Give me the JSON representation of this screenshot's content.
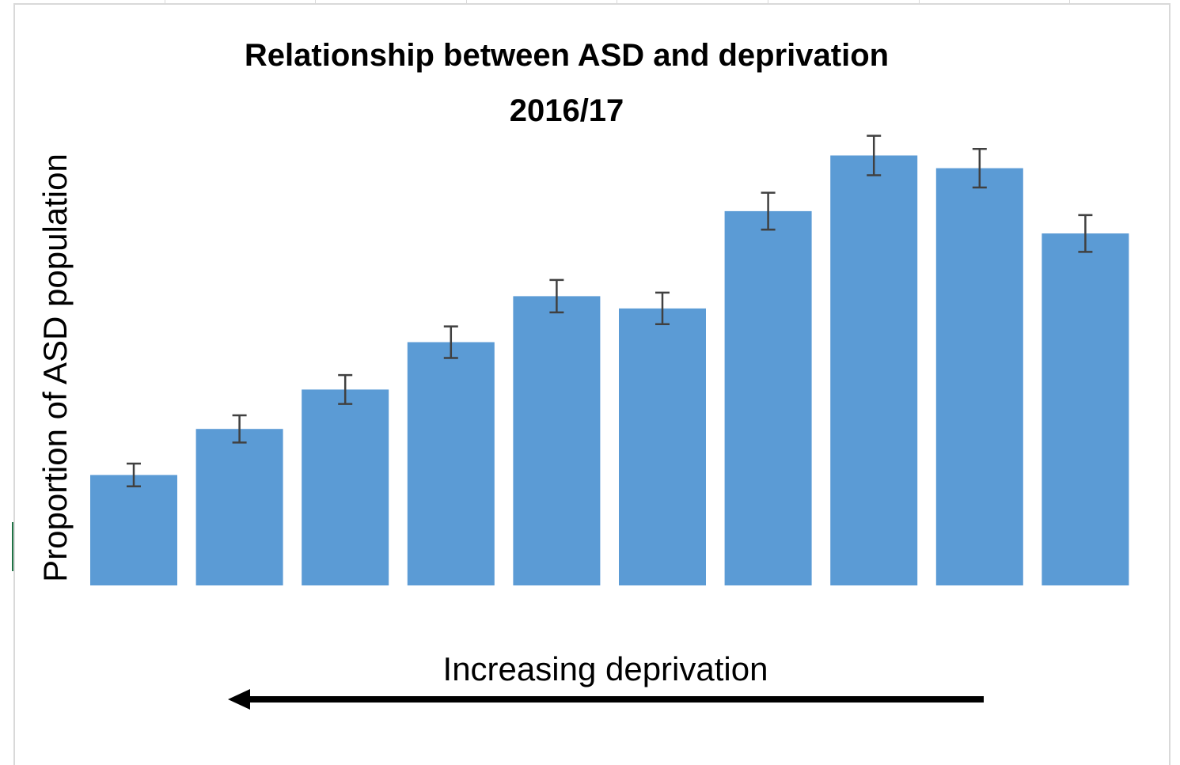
{
  "colors": {
    "bar": "#5B9BD5",
    "error_bar": "#404040",
    "arrow": "#000000",
    "frame": "#d9d9d9"
  },
  "chart_data": {
    "type": "bar",
    "title": [
      "Relationship between ASD and deprivation",
      "2016/17"
    ],
    "ylabel": "Proportion of ASD population",
    "annotation": "Increasing deprivation",
    "annotation_arrow_direction": "left",
    "y_tick_labels": "none",
    "x_tick_labels": "none",
    "grid": false,
    "legend": "none",
    "ylim": [
      0,
      100
    ],
    "values": [
      25.2,
      35.7,
      44.7,
      55.5,
      66.0,
      63.2,
      85.4,
      98.1,
      95.2,
      80.3
    ],
    "error": [
      2.6,
      3.1,
      3.3,
      3.6,
      3.7,
      3.6,
      4.2,
      4.5,
      4.4,
      4.2
    ]
  }
}
